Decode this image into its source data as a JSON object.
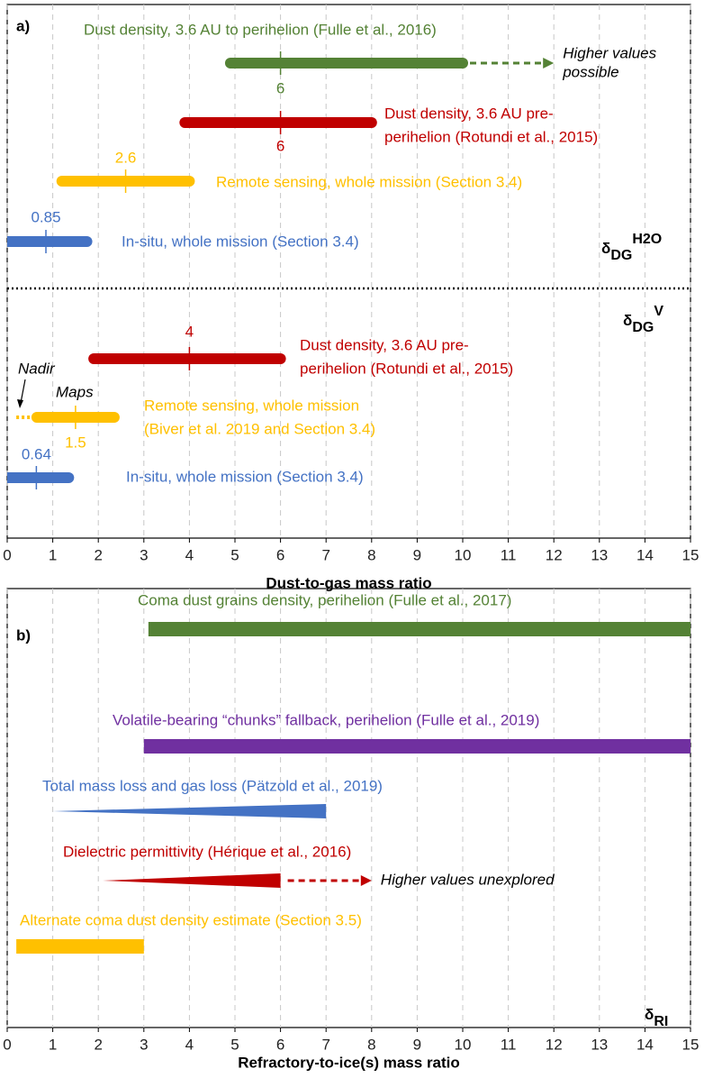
{
  "chart_data": [
    {
      "type": "range",
      "panel_label": "a)",
      "xlabel": "Dust-to-gas mass ratio",
      "xlim": [
        0,
        15
      ],
      "xticks": [
        0,
        1,
        2,
        3,
        4,
        5,
        6,
        7,
        8,
        9,
        10,
        11,
        12,
        13,
        14,
        15
      ],
      "grid": true,
      "symbols": [
        {
          "symbol": "δ",
          "sub": "DG",
          "sup": "H2O"
        },
        {
          "symbol": "δ",
          "sub": "DG",
          "sup": "V"
        }
      ],
      "series": [
        {
          "label": [
            "Dust density, 3.6 AU to perihelion (Fulle et al., 2016)"
          ],
          "color": "#548235",
          "values": [
            4.9,
            10
          ],
          "marker": 6,
          "arrow_to": 12,
          "annotation": [
            "Higher values",
            "possible"
          ]
        },
        {
          "label": [
            "Dust density, 3.6 AU pre-",
            "perihelion (Rotundi et al., 2015)"
          ],
          "color": "#c00000",
          "values": [
            3.9,
            8
          ],
          "marker": 6
        },
        {
          "label": [
            "Remote sensing, whole mission (Section 3.4)"
          ],
          "color": "#ffc000",
          "values": [
            1.2,
            4
          ],
          "marker": 2.6
        },
        {
          "label": [
            "In-situ, whole mission (Section 3.4)"
          ],
          "color": "#4472c4",
          "values": [
            0,
            1.75
          ],
          "marker": 0.85
        },
        {
          "label": [
            "Dust density, 3.6 AU pre-",
            "perihelion (Rotundi et al., 2015)"
          ],
          "color": "#c00000",
          "values": [
            1.9,
            6
          ],
          "marker": 4
        },
        {
          "label": [
            "Remote sensing, whole mission",
            "(Biver et al. 2019 and Section 3.4)"
          ],
          "color": "#ffc000",
          "values": [
            0.65,
            2.35
          ],
          "marker": 1.5,
          "dotted_from": 0.2,
          "notes": [
            "Nadir",
            "Maps"
          ]
        },
        {
          "label": [
            "In-situ, whole mission (Section 3.4)"
          ],
          "color": "#4472c4",
          "values": [
            0,
            1.35
          ],
          "marker": 0.64
        }
      ]
    },
    {
      "type": "range",
      "panel_label": "b)",
      "xlabel": "Refractory-to-ice(s) mass ratio",
      "xlim": [
        0,
        15
      ],
      "xticks": [
        0,
        1,
        2,
        3,
        4,
        5,
        6,
        7,
        8,
        9,
        10,
        11,
        12,
        13,
        14,
        15
      ],
      "grid": true,
      "symbols": [
        {
          "symbol": "δ",
          "sub": "RI"
        }
      ],
      "series": [
        {
          "label": [
            "Coma dust grains density, perihelion (Fulle et al., 2017)"
          ],
          "color": "#548235",
          "values": [
            3.1,
            15
          ],
          "shape": "bar"
        },
        {
          "label": [
            "Volatile-bearing “chunks” fallback, perihelion (Fulle et al., 2019)"
          ],
          "color": "#7030a0",
          "values": [
            3,
            15
          ],
          "shape": "bar"
        },
        {
          "label": [
            "Total mass loss and gas loss (Pätzold et al., 2019)"
          ],
          "color": "#4472c4",
          "values": [
            1,
            7
          ],
          "shape": "wedge"
        },
        {
          "label": [
            "Dielectric permittivity (Hérique et al., 2016)"
          ],
          "color": "#c00000",
          "values": [
            2.1,
            6
          ],
          "shape": "wedge",
          "arrow_to": 8,
          "annotation": [
            "Higher values unexplored"
          ]
        },
        {
          "label": [
            "Alternate coma dust density estimate (Section 3.5)"
          ],
          "color": "#ffc000",
          "values": [
            0.2,
            3
          ],
          "shape": "bar"
        }
      ]
    }
  ]
}
